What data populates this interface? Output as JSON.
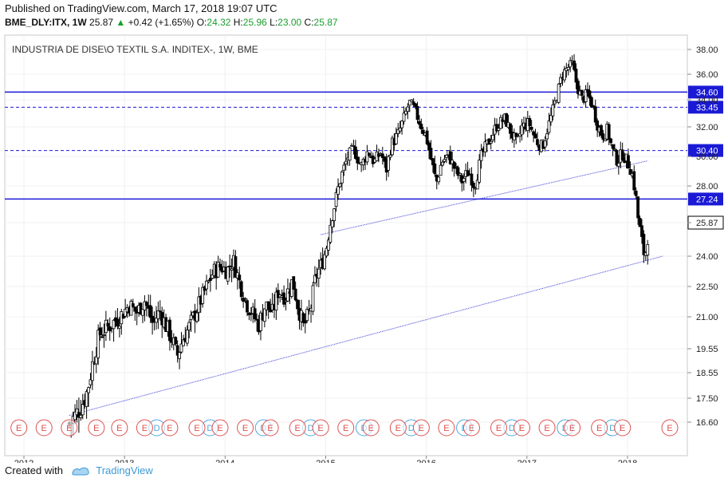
{
  "header": {
    "published": "Published on TradingView.com, March 17, 2018 19:07 UTC",
    "symbol": "BME_DLY:ITX, 1W",
    "last": "25.87",
    "arrow": "▲",
    "change": "+0.42 (+1.65%)",
    "o_label": "O:",
    "o_value": "24.32",
    "h_label": "H:",
    "h_value": "25.96",
    "l_label": "L:",
    "l_value": "23.00",
    "c_label": "C:",
    "c_value": "25.87"
  },
  "footer": {
    "created_with": "Created with",
    "brand": "TradingView"
  },
  "colors": {
    "candle_up": "#ffffff",
    "candle_down": "#000000",
    "level_line": "#1a1ad6",
    "trend_line": "#3b3bd6",
    "earnings": "#e05050",
    "dividend": "#4aa8e0",
    "last_price_bg": "#ffffff"
  },
  "chart_data": {
    "type": "candlestick",
    "title": "INDUSTRIA DE DISE\\O TEXTIL S.A. INDITEX-, 1W, BME",
    "x_ticks": [
      "2012",
      "2013",
      "2014",
      "2015",
      "2016",
      "2017",
      "2018"
    ],
    "y_ticks": [
      "16.60",
      "17.50",
      "18.55",
      "19.55",
      "21.00",
      "22.50",
      "24.00",
      "25.87",
      "28.00",
      "30.00",
      "32.00",
      "34.00",
      "36.00",
      "38.00"
    ],
    "last_price": 25.87,
    "levels": [
      {
        "value": 34.6,
        "style": "solid",
        "label": "34.60"
      },
      {
        "value": 33.45,
        "style": "dashed",
        "label": "33.45"
      },
      {
        "value": 30.4,
        "style": "dashed",
        "label": "30.40"
      },
      {
        "value": 27.24,
        "style": "solid",
        "label": "27.24"
      }
    ],
    "trendlines": [
      {
        "from": [
          2012.45,
          16.85
        ],
        "to": [
          2018.35,
          24.0
        ]
      },
      {
        "from": [
          2014.95,
          25.2
        ],
        "to": [
          2018.2,
          29.7
        ]
      }
    ],
    "events": {
      "earnings_label": "E",
      "dividend_label": "D",
      "earnings": [
        2011.95,
        2012.2,
        2012.45,
        2012.72,
        2012.95,
        2013.2,
        2013.45,
        2013.72,
        2013.95,
        2014.2,
        2014.45,
        2014.72,
        2014.95,
        2015.2,
        2015.45,
        2015.72,
        2015.95,
        2016.2,
        2016.45,
        2016.72,
        2016.95,
        2017.2,
        2017.45,
        2017.72,
        2017.95,
        2018.42
      ],
      "dividends": [
        2013.32,
        2013.85,
        2014.38,
        2014.85,
        2015.38,
        2015.85,
        2016.38,
        2016.85,
        2017.38,
        2017.85
      ]
    },
    "weekly_close_path": [
      [
        2012.45,
        16.55
      ],
      [
        2012.52,
        16.9
      ],
      [
        2012.58,
        17.3
      ],
      [
        2012.63,
        17.8
      ],
      [
        2012.68,
        18.9
      ],
      [
        2012.75,
        20.2
      ],
      [
        2012.85,
        20.6
      ],
      [
        2012.95,
        21.0
      ],
      [
        2013.05,
        21.6
      ],
      [
        2013.12,
        21.2
      ],
      [
        2013.2,
        21.8
      ],
      [
        2013.28,
        20.7
      ],
      [
        2013.35,
        21.3
      ],
      [
        2013.42,
        20.5
      ],
      [
        2013.48,
        19.9
      ],
      [
        2013.52,
        19.2
      ],
      [
        2013.58,
        20.0
      ],
      [
        2013.65,
        20.6
      ],
      [
        2013.72,
        21.4
      ],
      [
        2013.8,
        22.3
      ],
      [
        2013.88,
        23.2
      ],
      [
        2013.95,
        23.5
      ],
      [
        2014.02,
        23.3
      ],
      [
        2014.08,
        23.8
      ],
      [
        2014.15,
        22.6
      ],
      [
        2014.22,
        21.6
      ],
      [
        2014.28,
        21.1
      ],
      [
        2014.33,
        20.6
      ],
      [
        2014.4,
        21.6
      ],
      [
        2014.47,
        21.2
      ],
      [
        2014.53,
        22.3
      ],
      [
        2014.6,
        22.0
      ],
      [
        2014.67,
        22.8
      ],
      [
        2014.72,
        21.6
      ],
      [
        2014.78,
        20.5
      ],
      [
        2014.85,
        21.4
      ],
      [
        2014.9,
        23.0
      ],
      [
        2014.95,
        23.5
      ],
      [
        2015.0,
        24.3
      ],
      [
        2015.05,
        26.0
      ],
      [
        2015.1,
        27.2
      ],
      [
        2015.15,
        28.6
      ],
      [
        2015.22,
        30.0
      ],
      [
        2015.28,
        30.5
      ],
      [
        2015.35,
        29.3
      ],
      [
        2015.42,
        30.4
      ],
      [
        2015.48,
        29.6
      ],
      [
        2015.55,
        30.3
      ],
      [
        2015.6,
        29.0
      ],
      [
        2015.65,
        30.8
      ],
      [
        2015.72,
        31.5
      ],
      [
        2015.78,
        32.7
      ],
      [
        2015.83,
        33.8
      ],
      [
        2015.88,
        33.3
      ],
      [
        2015.93,
        32.4
      ],
      [
        2016.0,
        31.3
      ],
      [
        2016.05,
        29.7
      ],
      [
        2016.1,
        28.2
      ],
      [
        2016.15,
        29.6
      ],
      [
        2016.22,
        30.1
      ],
      [
        2016.28,
        29.2
      ],
      [
        2016.35,
        28.3
      ],
      [
        2016.42,
        29.0
      ],
      [
        2016.48,
        28.0
      ],
      [
        2016.55,
        30.1
      ],
      [
        2016.62,
        31.0
      ],
      [
        2016.7,
        32.1
      ],
      [
        2016.78,
        32.6
      ],
      [
        2016.85,
        31.5
      ],
      [
        2016.9,
        30.8
      ],
      [
        2016.95,
        32.0
      ],
      [
        2017.02,
        32.3
      ],
      [
        2017.08,
        31.2
      ],
      [
        2017.15,
        30.6
      ],
      [
        2017.2,
        31.8
      ],
      [
        2017.25,
        33.0
      ],
      [
        2017.3,
        34.4
      ],
      [
        2017.35,
        36.0
      ],
      [
        2017.4,
        36.5
      ],
      [
        2017.45,
        36.8
      ],
      [
        2017.5,
        35.0
      ],
      [
        2017.55,
        34.0
      ],
      [
        2017.6,
        34.5
      ],
      [
        2017.65,
        33.6
      ],
      [
        2017.7,
        32.2
      ],
      [
        2017.75,
        31.4
      ],
      [
        2017.8,
        31.8
      ],
      [
        2017.85,
        30.4
      ],
      [
        2017.9,
        29.7
      ],
      [
        2017.95,
        30.2
      ],
      [
        2018.0,
        29.6
      ],
      [
        2018.04,
        29.0
      ],
      [
        2018.08,
        27.5
      ],
      [
        2018.1,
        26.3
      ],
      [
        2018.13,
        25.2
      ],
      [
        2018.16,
        24.2
      ],
      [
        2018.19,
        24.3
      ],
      [
        2018.21,
        25.87
      ]
    ]
  }
}
